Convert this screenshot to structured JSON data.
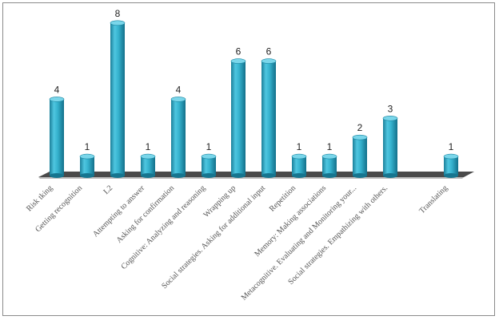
{
  "chart_data": {
    "type": "bar",
    "title": "",
    "xlabel": "",
    "ylabel": "",
    "ylim": [
      0,
      8
    ],
    "grid": false,
    "legend": "none",
    "style": "3d-cylinder",
    "color": "#2aa7c5",
    "floor_color": "#4a4a4a",
    "categories": [
      "Risk tking",
      "Getting recognition",
      "L2",
      "Attempting to answer",
      "Asking for confirmation",
      "Cognitive: Analyzing and reasoning",
      "Wrapping up",
      "Social strategies. Asking for additional input",
      "Repetition",
      "Memory: Making associations",
      "Metacognitive. Evaluating and Monitoring  your...",
      "Social strategies. Empathizing with others.",
      "Translating"
    ],
    "values": [
      4,
      1,
      8,
      1,
      4,
      1,
      6,
      6,
      1,
      1,
      2,
      3,
      1
    ],
    "data_labels": [
      "4",
      "1",
      "8",
      "1",
      "4",
      "1",
      "6",
      "6",
      "1",
      "1",
      "",
      "3",
      "1"
    ]
  }
}
